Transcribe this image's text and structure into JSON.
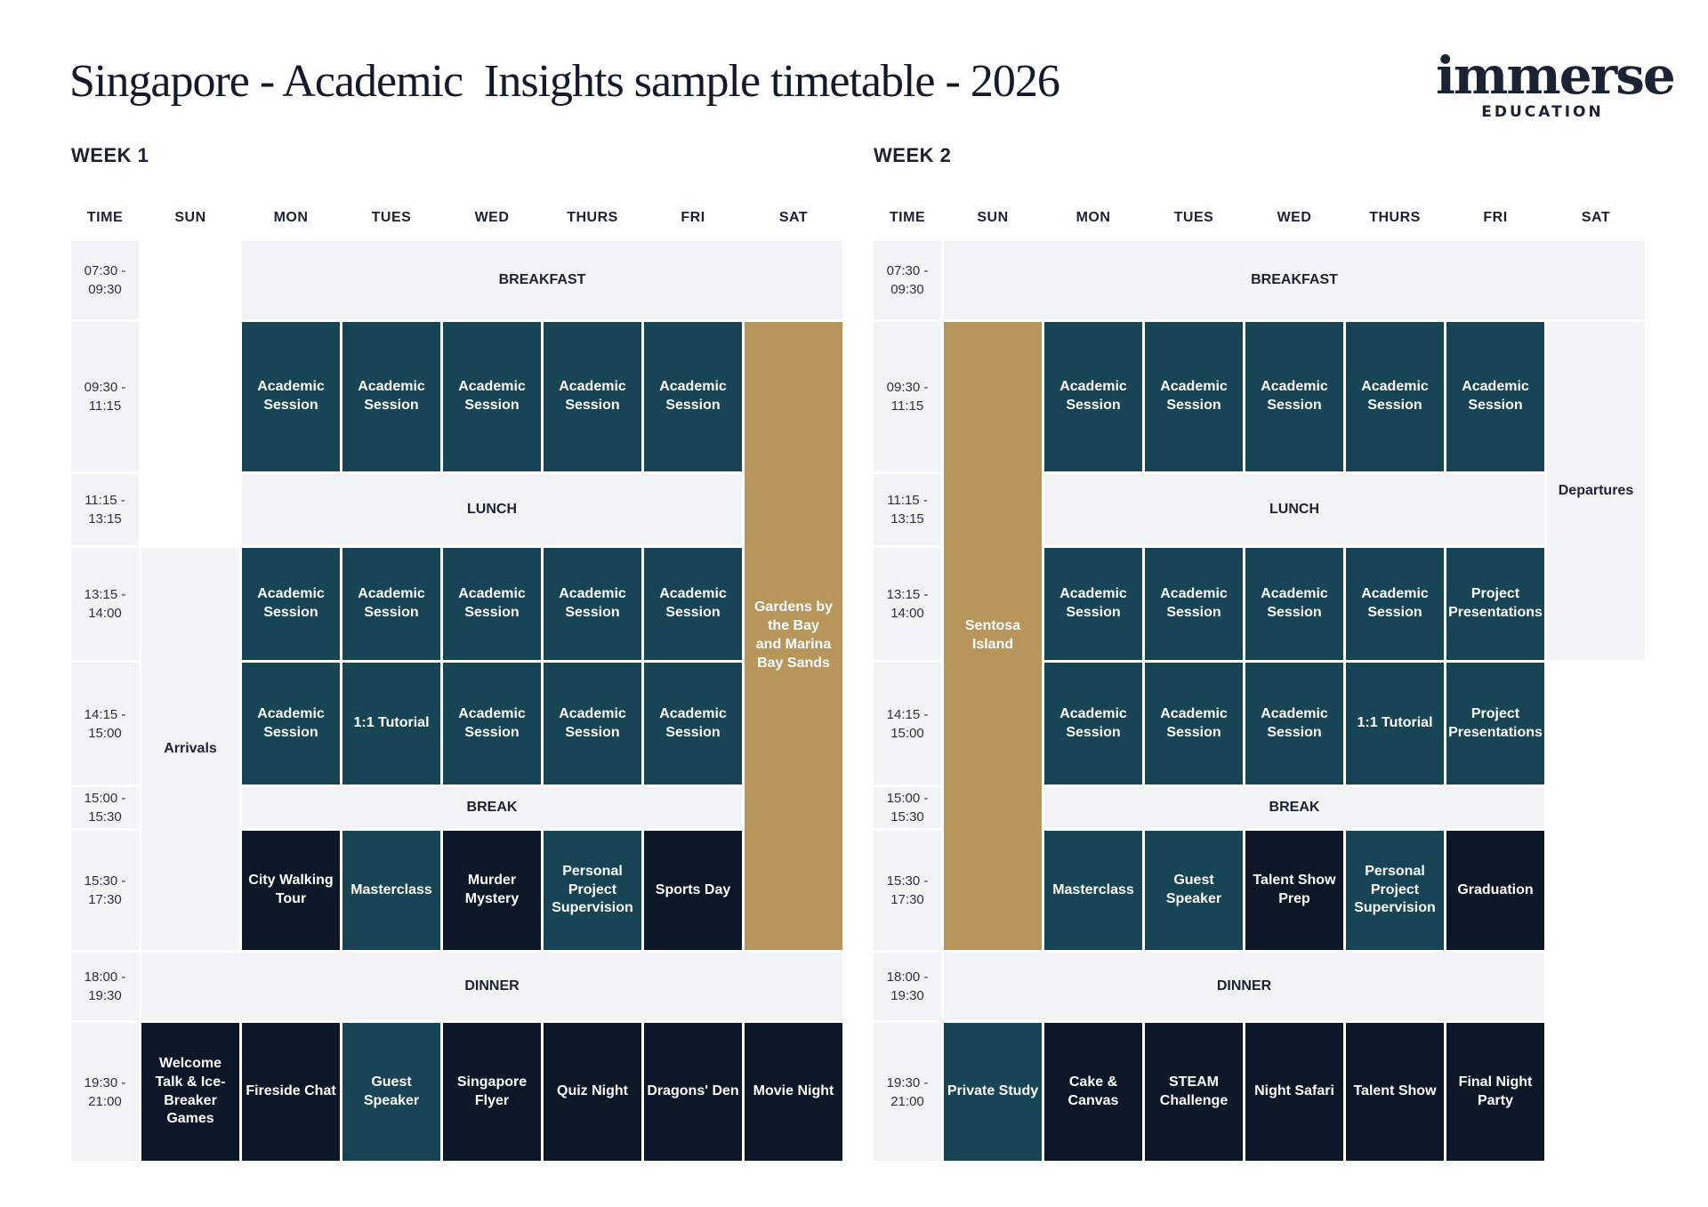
{
  "title": "Singapore - Academic  Insights sample timetable - 2026",
  "logo": {
    "word": "immerse",
    "sub": "EDUCATION"
  },
  "days": [
    "TIME",
    "SUN",
    "MON",
    "TUES",
    "WED",
    "THURS",
    "FRI",
    "SAT"
  ],
  "colors": {
    "teal": "#174556",
    "navy": "#0c1827",
    "gold": "#b8955b",
    "grey": "#f3f4f6"
  },
  "week1": {
    "label": "WEEK 1",
    "times": [
      "07:30 -\n09:30",
      "09:30 -\n11:15",
      "11:15 -\n13:15",
      "13:15 -\n14:00",
      "14:15 -\n15:00",
      "15:00 -\n15:30",
      "15:30 -\n17:30",
      "18:00 -\n19:30",
      "19:30 -\n21:00"
    ],
    "breakfast": "BREAKFAST",
    "lunch": "LUNCH",
    "break": "BREAK",
    "dinner": "DINNER",
    "sun_arrivals": "Arrivals",
    "sat_excursion": "Gardens by the Bay and Marina Bay Sands",
    "morning": [
      "Academic Session",
      "Academic Session",
      "Academic Session",
      "Academic Session",
      "Academic Session"
    ],
    "after1": [
      "Academic Session",
      "Academic Session",
      "Academic Session",
      "Academic Session",
      "Academic Session"
    ],
    "after2": [
      "Academic Session",
      "1:1 Tutorial",
      "Academic Session",
      "Academic Session",
      "Academic Session"
    ],
    "late": [
      "City Walking Tour",
      "Masterclass",
      "Murder Mystery",
      "Personal Project Supervision",
      "Sports Day"
    ],
    "evening": [
      "Welcome Talk & Ice-Breaker Games",
      "Fireside Chat",
      "Guest Speaker",
      "Singapore Flyer",
      "Quiz Night",
      "Dragons' Den",
      "Movie Night"
    ]
  },
  "week2": {
    "label": "WEEK 2",
    "times": [
      "07:30 -\n09:30",
      "09:30 -\n11:15",
      "11:15 -\n13:15",
      "13:15 -\n14:00",
      "14:15 -\n15:00",
      "15:00 -\n15:30",
      "15:30 -\n17:30",
      "18:00 -\n19:30",
      "19:30 -\n21:00"
    ],
    "breakfast": "BREAKFAST",
    "lunch": "LUNCH",
    "break": "BREAK",
    "dinner": "DINNER",
    "sun_excursion": "Sentosa Island",
    "sat_departures": "Departures",
    "morning": [
      "Academic Session",
      "Academic Session",
      "Academic Session",
      "Academic Session",
      "Academic Session"
    ],
    "after1": [
      "Academic Session",
      "Academic Session",
      "Academic Session",
      "Academic Session",
      "Project Presentations"
    ],
    "after2": [
      "Academic Session",
      "Academic Session",
      "Academic Session",
      "1:1 Tutorial",
      "Project Presentations"
    ],
    "late": [
      "Masterclass",
      "Guest Speaker",
      "Talent Show Prep",
      "Personal Project Supervision",
      "Graduation"
    ],
    "evening": [
      "Private Study",
      "Cake & Canvas",
      "STEAM Challenge",
      "Night Safari",
      "Talent Show",
      "Final Night Party"
    ]
  }
}
